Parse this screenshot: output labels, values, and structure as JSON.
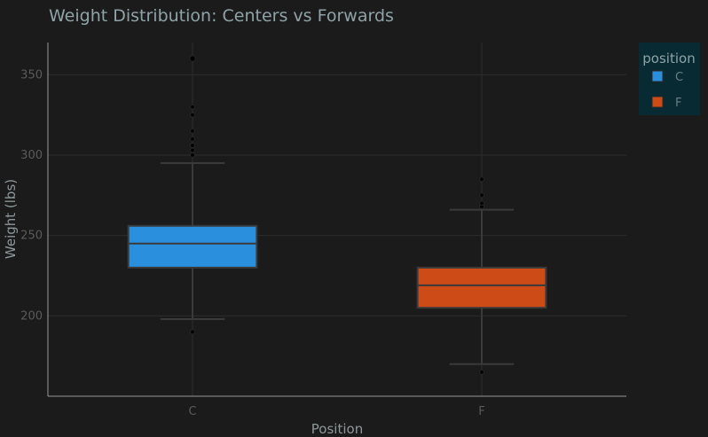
{
  "chart_data": {
    "type": "box",
    "title": "Weight Distribution: Centers vs Forwards",
    "xlabel": "Position",
    "ylabel": "Weight (lbs)",
    "ylim": [
      150,
      370
    ],
    "yticks": [
      200,
      250,
      300,
      350
    ],
    "categories": [
      "C",
      "F"
    ],
    "grid": true,
    "legend": {
      "title": "position",
      "placement": "top-right"
    },
    "series": [
      {
        "name": "C",
        "color": "#2a8fdc",
        "q1": 230,
        "median": 245,
        "q3": 256,
        "whisker_low": 198,
        "whisker_high": 295,
        "outliers": [
          190,
          300,
          303,
          306,
          310,
          315,
          325,
          330,
          360
        ]
      },
      {
        "name": "F",
        "color": "#cc4b16",
        "q1": 205,
        "median": 219,
        "q3": 230,
        "whisker_low": 170,
        "whisker_high": 266,
        "outliers": [
          165,
          268,
          270,
          275,
          285
        ]
      }
    ]
  }
}
